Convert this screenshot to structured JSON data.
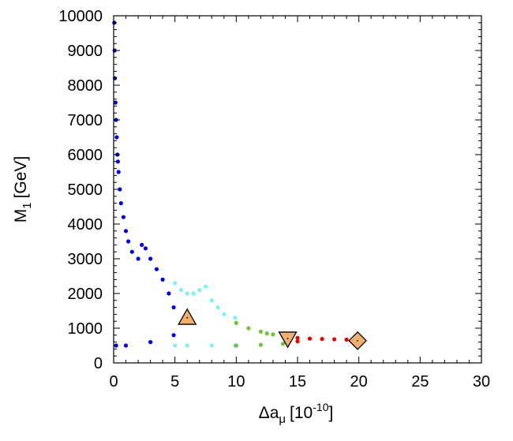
{
  "chart_data": {
    "type": "scatter",
    "xlabel": "Δa",
    "xlabel_sub": "μ",
    "xlabel_unit": "[10",
    "xlabel_sup": "-10",
    "xlabel_close": "]",
    "ylabel": "M",
    "ylabel_sub": "1",
    "ylabel_unit": "[GeV]",
    "xlim": [
      0,
      30
    ],
    "ylim": [
      0,
      10000
    ],
    "xticks": [
      0,
      5,
      10,
      15,
      20,
      25,
      30
    ],
    "yticks": [
      0,
      1000,
      2000,
      3000,
      4000,
      5000,
      6000,
      7000,
      8000,
      9000,
      10000
    ],
    "x_tick_labels": [
      "0",
      "5",
      "10",
      "15",
      "20",
      "25",
      "30"
    ],
    "y_tick_labels": [
      "0",
      "1000",
      "2000",
      "3000",
      "4000",
      "5000",
      "6000",
      "7000",
      "8000",
      "9000",
      "10000"
    ],
    "grid": false,
    "series": [
      {
        "color": "#0000e0",
        "region": "0 < Δa_μ < 5",
        "points": [
          [
            0.05,
            9800
          ],
          [
            0.08,
            9000
          ],
          [
            0.1,
            8200
          ],
          [
            0.15,
            7500
          ],
          [
            0.2,
            7000
          ],
          [
            0.25,
            6500
          ],
          [
            0.3,
            6000
          ],
          [
            0.35,
            5800
          ],
          [
            0.4,
            5500
          ],
          [
            0.5,
            5000
          ],
          [
            0.6,
            4600
          ],
          [
            0.8,
            4200
          ],
          [
            1.0,
            3800
          ],
          [
            1.2,
            3500
          ],
          [
            1.5,
            3200
          ],
          [
            2.0,
            3000
          ],
          [
            2.3,
            3400
          ],
          [
            2.6,
            3300
          ],
          [
            3.0,
            3000
          ],
          [
            3.5,
            2700
          ],
          [
            4.0,
            2400
          ],
          [
            4.5,
            2000
          ],
          [
            4.9,
            1600
          ],
          [
            4.9,
            800
          ],
          [
            3.0,
            600
          ],
          [
            1.0,
            500
          ],
          [
            0.2,
            500
          ]
        ]
      },
      {
        "color": "#80f0f8",
        "region": "5 < Δa_μ < 10",
        "points": [
          [
            5.0,
            2300
          ],
          [
            5.5,
            2100
          ],
          [
            6.0,
            2000
          ],
          [
            6.5,
            2000
          ],
          [
            7.0,
            2100
          ],
          [
            7.5,
            2200
          ],
          [
            8.0,
            1800
          ],
          [
            8.5,
            1600
          ],
          [
            9.0,
            1400
          ],
          [
            9.9,
            1300
          ],
          [
            9.9,
            500
          ],
          [
            8.0,
            500
          ],
          [
            6.0,
            500
          ],
          [
            5.0,
            500
          ]
        ]
      },
      {
        "color": "#70c040",
        "region": "10 < Δa_μ < 14",
        "points": [
          [
            10.0,
            1150
          ],
          [
            11.0,
            1000
          ],
          [
            12.0,
            900
          ],
          [
            12.5,
            850
          ],
          [
            13.0,
            820
          ],
          [
            13.8,
            780
          ],
          [
            13.8,
            550
          ],
          [
            12.0,
            520
          ],
          [
            10.0,
            500
          ]
        ]
      },
      {
        "color": "#e00000",
        "region": "14 < Δa_μ < 20",
        "points": [
          [
            14.3,
            720
          ],
          [
            15.0,
            720
          ],
          [
            16.0,
            700
          ],
          [
            17.0,
            690
          ],
          [
            18.0,
            680
          ],
          [
            19.0,
            670
          ],
          [
            19.5,
            660
          ],
          [
            19.5,
            600
          ],
          [
            15.0,
            620
          ],
          [
            14.3,
            620
          ]
        ]
      }
    ],
    "markers": [
      {
        "shape": "triangle-up",
        "x": 6.0,
        "y": 1300,
        "fill": "#f0b070"
      },
      {
        "shape": "triangle-down",
        "x": 14.2,
        "y": 700,
        "fill": "#f0b070"
      },
      {
        "shape": "diamond",
        "x": 19.9,
        "y": 640,
        "fill": "#f0b070"
      }
    ]
  }
}
